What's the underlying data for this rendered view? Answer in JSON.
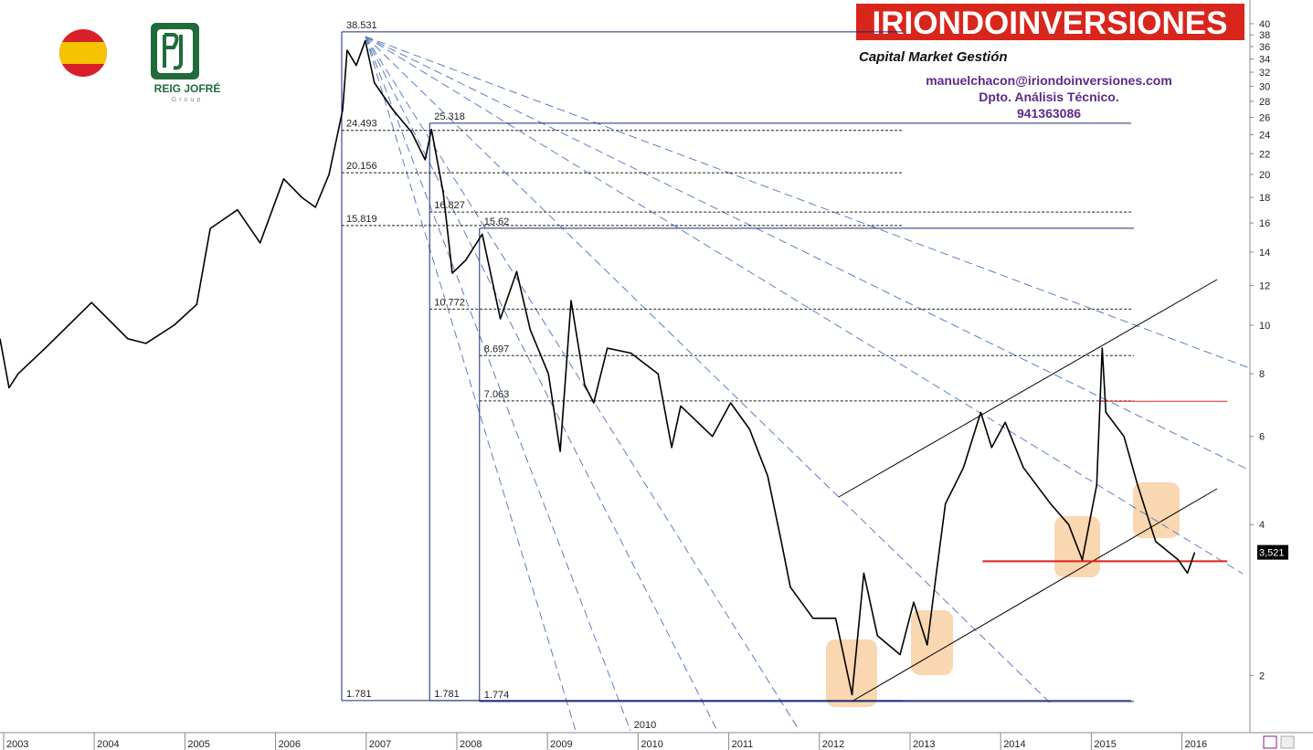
{
  "header": {
    "brand": "IRIONDOINVERSIONES",
    "tagline": "Capital Market Gestión",
    "email": "manuelchacon@iriondoinversiones.com",
    "department": "Dpto. Análisis Técnico.",
    "phone": "941363086",
    "logo_name": "REIG JOFRÉ",
    "logo_sub": "Group"
  },
  "chart_data": {
    "type": "line",
    "log_y": true,
    "color": "#000000",
    "x": [
      2002.96,
      2003.06,
      2003.16,
      2003.46,
      2003.97,
      2004.37,
      2004.57,
      2004.88,
      2005.13,
      2005.28,
      2005.58,
      2005.83,
      2006.09,
      2006.29,
      2006.44,
      2006.59,
      2006.74,
      2006.79,
      2006.89,
      2006.99,
      2007.09,
      2007.29,
      2007.5,
      2007.65,
      2007.72,
      2007.85,
      2007.95,
      2008.1,
      2008.28,
      2008.48,
      2008.66,
      2008.81,
      2009.01,
      2009.14,
      2009.26,
      2009.41,
      2009.51,
      2009.66,
      2009.92,
      2010.22,
      2010.37,
      2010.47,
      2010.82,
      2011.02,
      2011.23,
      2011.43,
      2011.58,
      2011.68,
      2011.93,
      2012.18,
      2012.36,
      2012.49,
      2012.64,
      2012.89,
      2013.04,
      2013.19,
      2013.29,
      2013.39,
      2013.59,
      2013.78,
      2013.9,
      2014.05,
      2014.25,
      2014.55,
      2014.75,
      2014.9,
      2015.06,
      2015.12,
      2015.16,
      2015.36,
      2015.51,
      2015.71,
      2015.96,
      2016.06,
      2016.14
    ],
    "values": [
      9.4,
      7.5,
      8,
      9,
      11.1,
      9.4,
      9.2,
      10,
      11,
      15.6,
      17,
      14.6,
      19.6,
      18,
      17.2,
      20,
      26.9,
      35.4,
      33,
      37,
      30.5,
      27,
      24.3,
      21.4,
      24.6,
      18.4,
      12.7,
      13.5,
      15.2,
      10.3,
      12.8,
      9.8,
      8,
      5.6,
      11.2,
      7.6,
      7,
      9,
      8.8,
      8,
      5.7,
      6.9,
      6,
      7,
      6.2,
      5,
      3.7,
      3,
      2.6,
      2.6,
      1.83,
      3.2,
      2.4,
      2.2,
      2.8,
      2.3,
      3.2,
      4.4,
      5.2,
      6.7,
      5.7,
      6.4,
      5.2,
      4.4,
      4,
      3.4,
      4.8,
      9,
      6.7,
      6,
      4.8,
      3.7,
      3.4,
      3.2,
      3.52
    ],
    "xlim": [
      2002.96,
      2016.75
    ],
    "ylim": [
      1.55,
      44.6
    ],
    "xticks": [
      2003,
      2004,
      2005,
      2006,
      2007,
      2008,
      2009,
      2010,
      2011,
      2012,
      2013,
      2014,
      2015,
      2016
    ],
    "yticks": [
      2,
      4,
      6,
      8,
      10,
      12,
      14,
      16,
      18,
      20,
      22,
      24,
      26,
      28,
      30,
      32,
      34,
      36,
      38,
      40
    ],
    "fib_sets": [
      {
        "x": [
          2006.73,
          2012.92
        ],
        "levels": [
          38.531,
          24.493,
          20.156,
          15.819,
          1.781
        ]
      },
      {
        "x": [
          2007.7,
          2015.44
        ],
        "levels": [
          25.318,
          16.827,
          10.772,
          1.781
        ]
      },
      {
        "x": [
          2008.25,
          2015.47
        ],
        "levels": [
          15.62,
          8.697,
          7.063,
          1.774
        ]
      }
    ],
    "support_lines": {
      "color": "#e02020",
      "lines": [
        {
          "value": 7.05,
          "x": [
            2015.1,
            2016.5
          ]
        },
        {
          "value": 3.38,
          "x": [
            2013.8,
            2016.5
          ]
        }
      ]
    },
    "last_price": {
      "value": 3.521,
      "label": "3,521"
    },
    "annotation": "2010"
  }
}
